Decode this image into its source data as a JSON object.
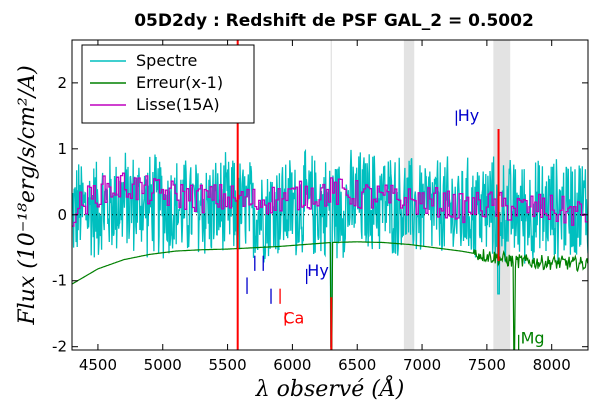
{
  "chart_data": {
    "type": "line",
    "title": "05D2dy : Redshift de PSF GAL_2 = 0.5002",
    "xlabel": "λ observé (Å)",
    "ylabel": "Flux (10⁻¹⁸erg/s/cm²/A)",
    "xlim": [
      4300,
      8280
    ],
    "ylim": [
      -2.05,
      2.65
    ],
    "xticks": [
      4500,
      5000,
      5500,
      6000,
      6500,
      7000,
      7500,
      8000
    ],
    "yticks": [
      -2,
      -1,
      0,
      1,
      2
    ],
    "grid": false,
    "legend_position": "top-left",
    "zero_line": 0,
    "colors": {
      "spectre": "#00bfbf",
      "erreur": "#008000",
      "lisse": "#bf00bf",
      "sky_band": "#e3e3e3",
      "sky_line": "#ff0000"
    },
    "series": [
      {
        "name": "Spectre",
        "color": "#00bfbf",
        "noise_amplitude": 0.55,
        "x": [
          4300,
          4500,
          4700,
          4900,
          5100,
          5300,
          5500,
          5700,
          5900,
          6100,
          6300,
          6500,
          6700,
          6900,
          7100,
          7300,
          7500,
          7700,
          7900,
          8100,
          8280
        ],
        "y": [
          0.05,
          0.1,
          0.2,
          0.15,
          0.1,
          0.1,
          0.1,
          0.05,
          0.1,
          0.15,
          0.1,
          0.2,
          0.2,
          0.1,
          0.1,
          0.05,
          0.1,
          0.05,
          0.05,
          0.1,
          0.15
        ]
      },
      {
        "name": "Erreur(x-1)",
        "color": "#008000",
        "x": [
          4300,
          4500,
          4700,
          4900,
          5100,
          5300,
          5500,
          5700,
          5900,
          6100,
          6300,
          6500,
          6700,
          6900,
          7100,
          7300,
          7500,
          7700,
          7900,
          8100,
          8280
        ],
        "y": [
          -1.05,
          -0.82,
          -0.68,
          -0.6,
          -0.55,
          -0.53,
          -0.52,
          -0.5,
          -0.48,
          -0.45,
          -0.42,
          -0.41,
          -0.42,
          -0.45,
          -0.5,
          -0.55,
          -0.62,
          -0.7,
          -0.72,
          -0.73,
          -0.75
        ]
      },
      {
        "name": "Lisse(15A)",
        "color": "#bf00bf",
        "x": [
          4300,
          4500,
          4700,
          4900,
          5100,
          5300,
          5500,
          5700,
          5900,
          6100,
          6300,
          6500,
          6700,
          6900,
          7100,
          7300,
          7500,
          7700,
          7900,
          8100,
          8280
        ],
        "y": [
          0.05,
          0.35,
          0.45,
          0.35,
          0.3,
          0.25,
          0.25,
          0.2,
          0.25,
          0.3,
          0.35,
          0.3,
          0.25,
          0.2,
          0.2,
          0.1,
          0.15,
          0.1,
          0.1,
          0.05,
          0.0
        ]
      }
    ],
    "shaded_bands": [
      {
        "x0": 5575,
        "x1": 5585
      },
      {
        "x0": 6295,
        "x1": 6305
      },
      {
        "x0": 6860,
        "x1": 6940
      },
      {
        "x0": 7550,
        "x1": 7680
      }
    ],
    "red_verticals": [
      {
        "x": 5578,
        "y0": -2.05,
        "y1": 2.65
      },
      {
        "x": 6300,
        "y0": -2.05,
        "y1": -1.25
      },
      {
        "x": 7590,
        "y0": -0.7,
        "y1": 1.3
      }
    ],
    "annotations": [
      {
        "text": "Hy",
        "x": 7275,
        "y": 1.42,
        "color": "#0000cc"
      },
      {
        "text": "Hy",
        "x": 6115,
        "y": -0.93,
        "color": "#0000cc"
      },
      {
        "text": "Ca",
        "x": 5930,
        "y": -1.65,
        "color": "#ff0000"
      },
      {
        "text": "Mg",
        "x": 7760,
        "y": -1.95,
        "color": "#008000"
      }
    ],
    "line_markers": [
      {
        "x": 5650,
        "y0": -1.2,
        "y1": -0.95,
        "color": "#0000cc"
      },
      {
        "x": 5710,
        "y0": -0.85,
        "y1": -0.62,
        "color": "#0000cc"
      },
      {
        "x": 5775,
        "y0": -0.85,
        "y1": -0.62,
        "color": "#0000cc"
      },
      {
        "x": 5835,
        "y0": -1.35,
        "y1": -1.12,
        "color": "#0000cc"
      },
      {
        "x": 5905,
        "y0": -1.35,
        "y1": -1.12,
        "color": "#ff0000"
      },
      {
        "x": 5945,
        "y0": -1.68,
        "y1": -1.48,
        "color": "#ff0000"
      },
      {
        "x": 6110,
        "y0": -1.05,
        "y1": -0.82,
        "color": "#0000cc"
      },
      {
        "x": 7265,
        "y0": 1.35,
        "y1": 1.58,
        "color": "#0000cc"
      },
      {
        "x": 7745,
        "y0": -2.05,
        "y1": -1.82,
        "color": "#008000"
      }
    ]
  }
}
